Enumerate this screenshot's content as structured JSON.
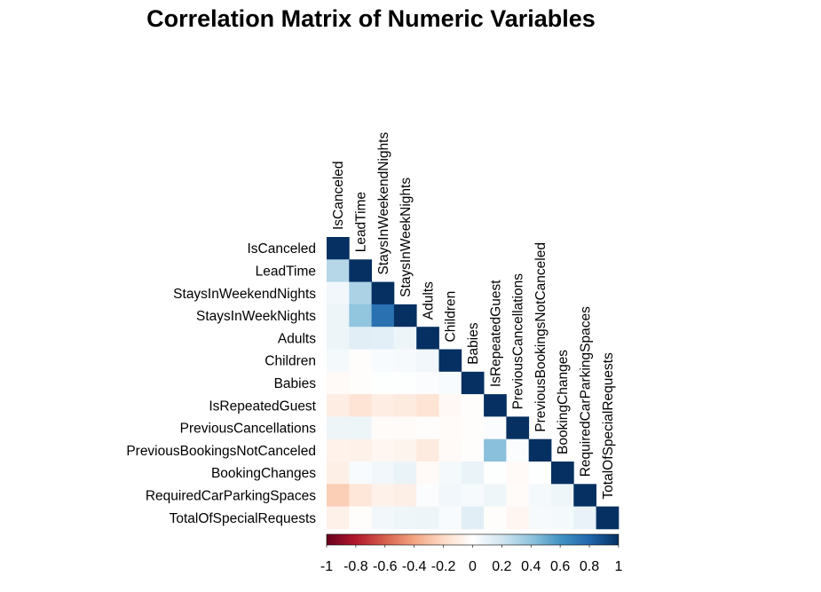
{
  "chart_data": {
    "type": "heatmap",
    "title": "Correlation Matrix of Numeric Variables",
    "variables": [
      "IsCanceled",
      "LeadTime",
      "StaysInWeekendNights",
      "StaysInWeekNights",
      "Adults",
      "Children",
      "Babies",
      "IsRepeatedGuest",
      "PreviousCancellations",
      "PreviousBookingsNotCanceled",
      "BookingChanges",
      "RequiredCarParkingSpaces",
      "TotalOfSpecialRequests"
    ],
    "layout": "lower-triangle",
    "matrix": [
      [
        1
      ],
      [
        0.29,
        1
      ],
      [
        0.06,
        0.32,
        1
      ],
      [
        0.08,
        0.4,
        0.75,
        1
      ],
      [
        0.08,
        0.13,
        0.12,
        0.08,
        1
      ],
      [
        0.05,
        -0.01,
        0.03,
        0.04,
        0.06,
        1
      ],
      [
        -0.03,
        -0.01,
        0.01,
        0.01,
        0.02,
        0.03,
        1
      ],
      [
        -0.1,
        -0.15,
        -0.1,
        -0.11,
        -0.15,
        -0.04,
        -0.01,
        1
      ],
      [
        0.08,
        0.08,
        -0.02,
        -0.02,
        -0.01,
        -0.02,
        -0.01,
        0.02,
        1
      ],
      [
        -0.07,
        -0.08,
        -0.05,
        -0.06,
        -0.11,
        -0.03,
        -0.01,
        0.42,
        0.02,
        1
      ],
      [
        -0.09,
        0.03,
        0.06,
        0.09,
        -0.03,
        0.05,
        0.09,
        0.01,
        -0.03,
        0.01,
        1
      ],
      [
        -0.25,
        -0.14,
        -0.08,
        -0.09,
        0.02,
        0.06,
        0.04,
        0.07,
        -0.02,
        0.05,
        0.07,
        1
      ],
      [
        -0.08,
        -0.01,
        0.06,
        0.07,
        0.08,
        0.03,
        0.13,
        -0.01,
        -0.05,
        0.04,
        0.05,
        0.1,
        1
      ]
    ],
    "colorbar": {
      "ticks": [
        "-1",
        "-0.8",
        "-0.6",
        "-0.4",
        "-0.2",
        "0",
        "0.2",
        "0.4",
        "0.6",
        "0.8",
        "1"
      ],
      "range": [
        -1,
        1
      ],
      "colors": [
        "#67001F",
        "#B2182B",
        "#D6604D",
        "#F4A582",
        "#FDDBC7",
        "#FFFFFF",
        "#D1E5F0",
        "#92C5DE",
        "#4393C3",
        "#2166AC",
        "#053061"
      ]
    }
  }
}
